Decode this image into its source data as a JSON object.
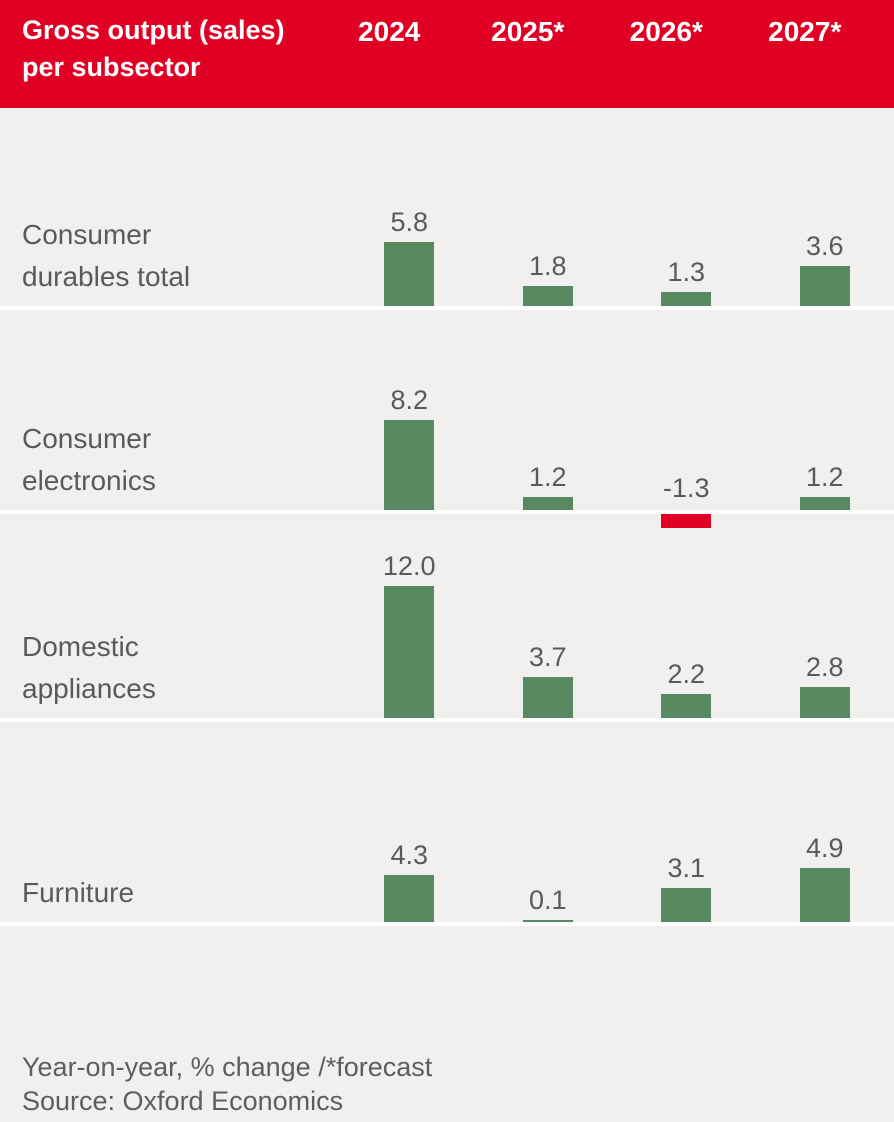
{
  "header": {
    "title_line1": "Gross output (sales)",
    "title_line2": "per subsector",
    "columns": [
      "2024",
      "2025*",
      "2026*",
      "2027*"
    ]
  },
  "rows": [
    {
      "label_lines": [
        "Consumer",
        "durables total"
      ],
      "values": [
        "5.8",
        "1.8",
        "1.3",
        "3.6"
      ]
    },
    {
      "label_lines": [
        "Consumer",
        "electronics"
      ],
      "values": [
        "8.2",
        "1.2",
        "-1.3",
        "1.2"
      ]
    },
    {
      "label_lines": [
        "Domestic",
        "appliances"
      ],
      "values": [
        "12.0",
        "3.7",
        "2.2",
        "2.8"
      ]
    },
    {
      "label_lines": [
        "Furniture"
      ],
      "values": [
        "4.3",
        "0.1",
        "3.1",
        "4.9"
      ]
    }
  ],
  "chart_data": {
    "type": "bar",
    "title": "Gross output (sales) per subsector",
    "categories": [
      "2024",
      "2025*",
      "2026*",
      "2027*"
    ],
    "series": [
      {
        "name": "Consumer durables total",
        "values": [
          5.8,
          1.8,
          1.3,
          3.6
        ]
      },
      {
        "name": "Consumer electronics",
        "values": [
          8.2,
          1.2,
          -1.3,
          1.2
        ]
      },
      {
        "name": "Domestic appliances",
        "values": [
          12.0,
          3.7,
          2.2,
          2.8
        ]
      },
      {
        "name": "Furniture",
        "values": [
          4.3,
          0.1,
          3.1,
          4.9
        ]
      }
    ],
    "ylabel": "Year-on-year, % change",
    "note": "* = forecast",
    "grid": false,
    "legend_position": "none",
    "value_labels": true
  },
  "footer": {
    "note": "Year-on-year, % change /*forecast",
    "source": "Source: Oxford Economics"
  },
  "colors": {
    "header_bg": "#DF0024",
    "positive_bar": "#588A62",
    "negative_bar": "#DF0024",
    "row_bg": "#F2F0EE",
    "separator": "#FFFFFF",
    "text": "#595A5F",
    "header_text": "#FFFFFF"
  }
}
